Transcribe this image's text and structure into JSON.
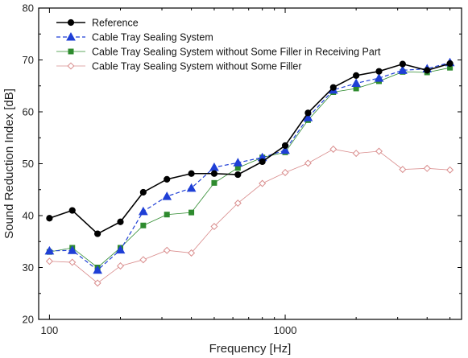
{
  "chart_data": {
    "type": "line",
    "xlabel": "Frequency [Hz]",
    "ylabel": "Sound Reduction Index [dB]",
    "xscale": "log",
    "xlim": [
      90,
      5600
    ],
    "ylim": [
      20,
      80
    ],
    "y_ticks": [
      20,
      30,
      40,
      50,
      60,
      70,
      80
    ],
    "x_major_ticks": [
      100,
      1000
    ],
    "x_tick_labels": [
      "100",
      "1000"
    ],
    "legend_position": "top-left",
    "grid": false,
    "x": [
      100,
      125,
      160,
      200,
      250,
      315,
      400,
      500,
      630,
      800,
      1000,
      1250,
      1600,
      2000,
      2500,
      3150,
      4000,
      5000
    ],
    "series": [
      {
        "name": "Reference",
        "color": "#000000",
        "marker": "circle",
        "line_style": "solid",
        "values": [
          39.5,
          41.0,
          36.5,
          38.8,
          44.5,
          47.0,
          48.1,
          48.1,
          47.9,
          50.4,
          53.5,
          59.8,
          64.7,
          67.0,
          67.8,
          69.2,
          68.0,
          69.3
        ]
      },
      {
        "name": "Cable Tray Sealing System",
        "color": "#1f3fd6",
        "marker": "triangle",
        "line_style": "dashed",
        "values": [
          33.2,
          33.3,
          29.5,
          33.4,
          40.8,
          43.7,
          45.3,
          49.3,
          50.2,
          51.2,
          52.6,
          58.9,
          64.2,
          65.5,
          66.5,
          68.0,
          68.3,
          69.5
        ]
      },
      {
        "name": "Cable Tray Sealing System without Some Filler in Receiving Part",
        "color": "#2e8b2e",
        "marker": "square",
        "line_style": "solid",
        "values": [
          33.0,
          33.8,
          30.0,
          33.8,
          38.1,
          40.2,
          40.6,
          46.3,
          49.2,
          51.2,
          52.2,
          58.4,
          63.8,
          64.5,
          65.9,
          67.7,
          67.6,
          68.5
        ]
      },
      {
        "name": "Cable Tray Sealing System without Some Filler",
        "color": "#d98c8c",
        "marker": "open-diamond",
        "line_style": "solid",
        "values": [
          31.2,
          31.0,
          27.0,
          30.3,
          31.5,
          33.3,
          32.8,
          37.9,
          42.4,
          46.2,
          48.3,
          50.1,
          52.8,
          52.0,
          52.4,
          48.9,
          49.1,
          48.8
        ]
      }
    ]
  }
}
